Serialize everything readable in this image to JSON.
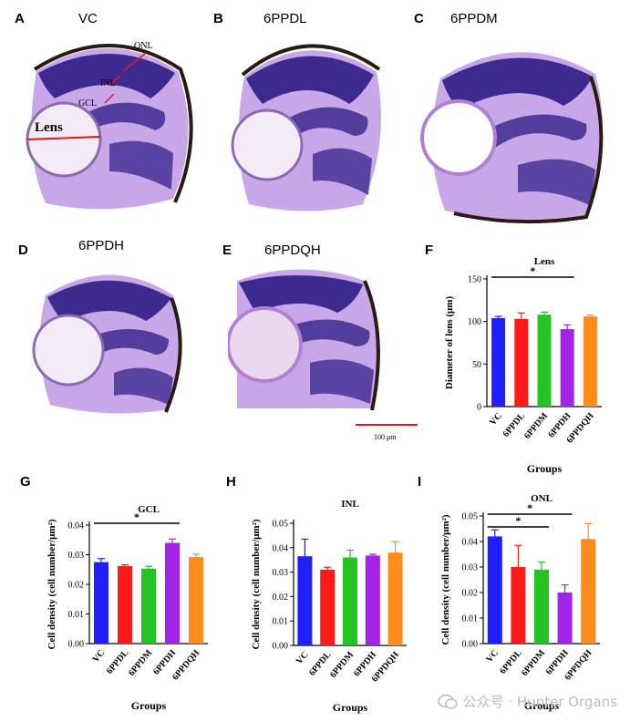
{
  "panels": {
    "A": {
      "letter": "A",
      "label": "VC",
      "annotations": {
        "onl": "ONL",
        "inl": "INL",
        "gcl": "GCL",
        "lens": "Lens"
      }
    },
    "B": {
      "letter": "B",
      "label": "6PPDL"
    },
    "C": {
      "letter": "C",
      "label": "6PPDM"
    },
    "D": {
      "letter": "D",
      "label": "6PPDH"
    },
    "E": {
      "letter": "E",
      "label": "6PPDQH",
      "scalebar": "100 μm"
    },
    "F": {
      "letter": "F"
    },
    "G": {
      "letter": "G"
    },
    "H": {
      "letter": "H"
    },
    "I": {
      "letter": "I"
    }
  },
  "colors": {
    "VC": "#1f1fff",
    "6PPDL": "#ff1a1a",
    "6PPDM": "#22c322",
    "6PPDH": "#a324e8",
    "6PPDQH": "#ff8c1a",
    "tissue_dark": "#3d2a8f",
    "tissue_light": "#c8a8e8",
    "pigment": "#2a1a10",
    "red_marker": "#d61c1c"
  },
  "watermark": "公众号 · Hunter Organs",
  "chart_data": [
    {
      "id": "F",
      "type": "bar",
      "title": "Lens",
      "ylabel": "Diameter of lens (μm)",
      "xlabel": "Groups",
      "categories": [
        "VC",
        "6PPDL",
        "6PPDM",
        "6PPDH",
        "6PPDQH"
      ],
      "values": [
        104,
        103,
        108,
        91,
        106
      ],
      "errors": [
        2,
        7,
        3,
        5,
        1.5
      ],
      "ylim": [
        0,
        150
      ],
      "yticks": [
        0,
        50,
        100,
        150
      ],
      "significance": [
        {
          "from": 0,
          "to": 3,
          "label": "*"
        }
      ]
    },
    {
      "id": "G",
      "type": "bar",
      "title": "GCL",
      "ylabel": "Cell density (cell number/μm²)",
      "xlabel": "Groups",
      "categories": [
        "VC",
        "6PPDL",
        "6PPDM",
        "6PPDH",
        "6PPDQH"
      ],
      "values": [
        0.0275,
        0.0262,
        0.0253,
        0.034,
        0.0292
      ],
      "errors": [
        0.0012,
        0.0004,
        0.0008,
        0.0013,
        0.001
      ],
      "ylim": [
        0,
        0.04
      ],
      "yticks": [
        0,
        0.01,
        0.02,
        0.03,
        0.04
      ],
      "ytick_labels": [
        "0.00",
        "0.01",
        "0.02",
        "0.03",
        "0.04"
      ],
      "significance": [
        {
          "from": 0,
          "to": 3,
          "label": "*"
        }
      ]
    },
    {
      "id": "H",
      "type": "bar",
      "title": "INL",
      "ylabel": "Cell density (cell number/μm²)",
      "xlabel": "Groups",
      "categories": [
        "VC",
        "6PPDL",
        "6PPDM",
        "6PPDH",
        "6PPDQH"
      ],
      "values": [
        0.0365,
        0.031,
        0.036,
        0.0368,
        0.038
      ],
      "errors": [
        0.007,
        0.001,
        0.003,
        0.0005,
        0.0045
      ],
      "ylim": [
        0,
        0.05
      ],
      "yticks": [
        0,
        0.01,
        0.02,
        0.03,
        0.04,
        0.05
      ],
      "ytick_labels": [
        "0.00",
        "0.01",
        "0.02",
        "0.03",
        "0.04",
        "0.05"
      ],
      "significance": []
    },
    {
      "id": "I",
      "type": "bar",
      "title": "ONL",
      "ylabel": "Cell density (cell number/μm²)",
      "xlabel": "Groups",
      "categories": [
        "VC",
        "6PPDL",
        "6PPDM",
        "6PPDH",
        "6PPDQH"
      ],
      "values": [
        0.042,
        0.03,
        0.029,
        0.02,
        0.041
      ],
      "errors": [
        0.0025,
        0.0085,
        0.003,
        0.003,
        0.006
      ],
      "ylim": [
        0,
        0.05
      ],
      "yticks": [
        0,
        0.01,
        0.02,
        0.03,
        0.04,
        0.05
      ],
      "ytick_labels": [
        "0.00",
        "0.01",
        "0.02",
        "0.03",
        "0.04",
        "0.05"
      ],
      "significance": [
        {
          "from": 0,
          "to": 3,
          "label": "*"
        },
        {
          "from": 0,
          "to": 2,
          "label": "*"
        }
      ]
    }
  ]
}
